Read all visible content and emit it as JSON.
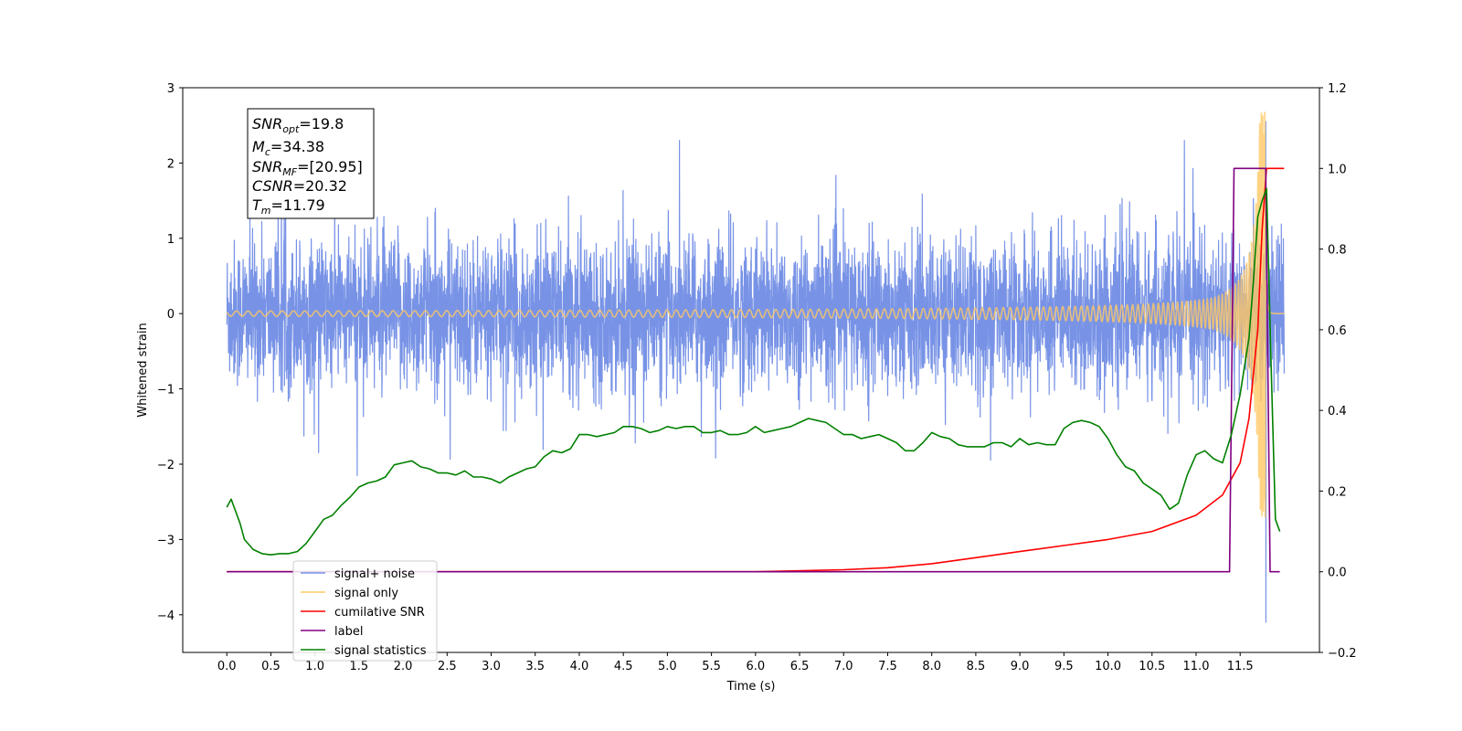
{
  "chart_data": {
    "type": "line",
    "xlabel": "Time (s)",
    "ylabel_left": "Whitened strain",
    "ylabel_right": "",
    "xlim": [
      -0.5,
      12.4
    ],
    "ylim_left": [
      -4.5,
      3.0
    ],
    "ylim_right": [
      -0.2,
      1.2
    ],
    "x_ticks": [
      "0.0",
      "0.5",
      "1.0",
      "1.5",
      "2.0",
      "2.5",
      "3.0",
      "3.5",
      "4.0",
      "4.5",
      "5.0",
      "5.5",
      "6.0",
      "6.5",
      "7.0",
      "7.5",
      "8.0",
      "8.5",
      "9.0",
      "9.5",
      "10.0",
      "10.5",
      "11.0",
      "11.5"
    ],
    "y_ticks_left": [
      "3",
      "2",
      "1",
      "0",
      "−1",
      "−2",
      "−3",
      "−4"
    ],
    "y_ticks_right": [
      "1.2",
      "1.0",
      "0.8",
      "0.6",
      "0.4",
      "0.2",
      "0.0",
      "−0.2"
    ],
    "grid": false,
    "legend_position": "lower-left",
    "annotation": {
      "snr_opt": {
        "base": "SNR",
        "sub": "opt",
        "value": "=19.8"
      },
      "mc": {
        "base": "M",
        "sub": "c",
        "value": "=34.38"
      },
      "snr_mf": {
        "base": "SNR",
        "sub": "MF",
        "value": "=[20.95]"
      },
      "csnr": {
        "base": "CSNR",
        "value": "=20.32"
      },
      "tm": {
        "base": "T",
        "sub": "m",
        "value": "=11.79"
      }
    },
    "series": [
      {
        "name": "signal+ noise",
        "color": "#7893e6",
        "axis": "left",
        "kind": "noise",
        "t_range": [
          0.0,
          12.0
        ],
        "envelope_typical": 1.0,
        "peak_max": 2.55,
        "peak_min": -4.1,
        "peak_time": 11.79
      },
      {
        "name": "signal only",
        "color": "#ffc864",
        "axis": "left",
        "kind": "chirp",
        "t_range": [
          0.0,
          12.0
        ],
        "merger_time": 11.79,
        "peak_amplitude": 2.7
      },
      {
        "name": "cumilative SNR",
        "color": "#ff0000",
        "axis": "right",
        "x": [
          0.0,
          6.0,
          7.0,
          7.5,
          8.0,
          8.5,
          9.0,
          9.5,
          10.0,
          10.5,
          11.0,
          11.3,
          11.5,
          11.6,
          11.7,
          11.75,
          11.8,
          12.0
        ],
        "y": [
          0.0,
          0.0,
          0.005,
          0.01,
          0.02,
          0.035,
          0.05,
          0.065,
          0.08,
          0.1,
          0.14,
          0.19,
          0.27,
          0.38,
          0.6,
          0.85,
          1.0,
          1.0
        ]
      },
      {
        "name": "label",
        "color": "#800080",
        "axis": "right",
        "x": [
          0.0,
          11.38,
          11.43,
          11.79,
          11.84,
          11.95
        ],
        "y": [
          0.0,
          0.0,
          1.0,
          1.0,
          0.0,
          0.0
        ]
      },
      {
        "name": "signal statistics",
        "color": "#008000",
        "axis": "right",
        "x": [
          0.0,
          0.05,
          0.15,
          0.2,
          0.3,
          0.4,
          0.5,
          0.6,
          0.7,
          0.8,
          0.9,
          1.0,
          1.1,
          1.2,
          1.3,
          1.4,
          1.5,
          1.6,
          1.7,
          1.8,
          1.9,
          2.0,
          2.1,
          2.2,
          2.3,
          2.4,
          2.5,
          2.6,
          2.7,
          2.8,
          2.9,
          3.0,
          3.1,
          3.2,
          3.3,
          3.4,
          3.5,
          3.6,
          3.7,
          3.8,
          3.9,
          4.0,
          4.1,
          4.2,
          4.3,
          4.4,
          4.5,
          4.6,
          4.7,
          4.8,
          4.9,
          5.0,
          5.1,
          5.2,
          5.3,
          5.4,
          5.5,
          5.6,
          5.7,
          5.8,
          5.9,
          6.0,
          6.1,
          6.2,
          6.3,
          6.4,
          6.5,
          6.6,
          6.7,
          6.8,
          6.9,
          7.0,
          7.1,
          7.2,
          7.3,
          7.4,
          7.5,
          7.6,
          7.7,
          7.8,
          7.9,
          8.0,
          8.1,
          8.2,
          8.3,
          8.4,
          8.5,
          8.6,
          8.7,
          8.8,
          8.9,
          9.0,
          9.1,
          9.2,
          9.3,
          9.4,
          9.5,
          9.6,
          9.7,
          9.8,
          9.9,
          10.0,
          10.1,
          10.2,
          10.3,
          10.4,
          10.5,
          10.6,
          10.7,
          10.8,
          10.9,
          11.0,
          11.1,
          11.2,
          11.3,
          11.4,
          11.5,
          11.6,
          11.65,
          11.7,
          11.75,
          11.8,
          11.85,
          11.9,
          11.95
        ],
        "y": [
          0.16,
          0.18,
          0.12,
          0.08,
          0.055,
          0.045,
          0.042,
          0.045,
          0.045,
          0.05,
          0.07,
          0.1,
          0.13,
          0.14,
          0.165,
          0.185,
          0.21,
          0.22,
          0.225,
          0.235,
          0.265,
          0.27,
          0.275,
          0.26,
          0.255,
          0.245,
          0.245,
          0.24,
          0.25,
          0.235,
          0.235,
          0.23,
          0.22,
          0.235,
          0.245,
          0.255,
          0.26,
          0.285,
          0.3,
          0.295,
          0.305,
          0.34,
          0.34,
          0.335,
          0.34,
          0.345,
          0.36,
          0.36,
          0.355,
          0.345,
          0.35,
          0.36,
          0.355,
          0.36,
          0.36,
          0.345,
          0.345,
          0.35,
          0.34,
          0.34,
          0.345,
          0.36,
          0.345,
          0.35,
          0.355,
          0.36,
          0.37,
          0.38,
          0.375,
          0.37,
          0.355,
          0.34,
          0.34,
          0.33,
          0.335,
          0.34,
          0.33,
          0.32,
          0.3,
          0.3,
          0.32,
          0.345,
          0.335,
          0.33,
          0.315,
          0.31,
          0.31,
          0.31,
          0.32,
          0.32,
          0.31,
          0.33,
          0.315,
          0.32,
          0.315,
          0.315,
          0.355,
          0.37,
          0.375,
          0.37,
          0.36,
          0.33,
          0.29,
          0.26,
          0.25,
          0.22,
          0.205,
          0.19,
          0.155,
          0.17,
          0.24,
          0.29,
          0.3,
          0.28,
          0.27,
          0.34,
          0.44,
          0.58,
          0.72,
          0.88,
          0.92,
          0.95,
          0.52,
          0.13,
          0.1
        ]
      }
    ]
  }
}
